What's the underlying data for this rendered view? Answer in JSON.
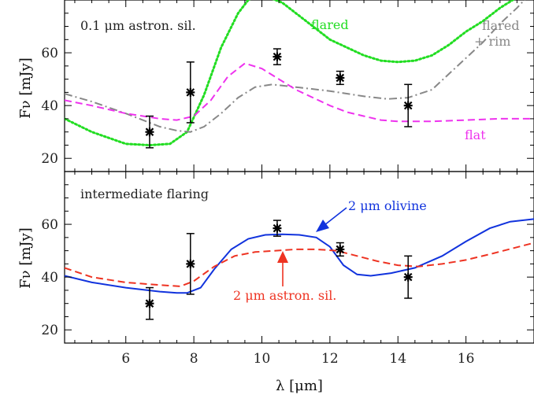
{
  "chart_data": [
    {
      "type": "line",
      "panel_label": "0.1 μm astron. sil.",
      "ylabel": "Fν [mJy]",
      "xlim": [
        4.2,
        18
      ],
      "ylim": [
        15,
        80
      ],
      "yticks": [
        20,
        40,
        60
      ],
      "grid": false,
      "series": [
        {
          "name": "flared",
          "color": "#22dd22",
          "style": "dotted",
          "x": [
            4.2,
            5,
            6,
            6.7,
            7.3,
            7.8,
            8.3,
            8.8,
            9.3,
            9.6,
            9.9,
            10.2,
            10.6,
            11,
            11.5,
            12,
            12.5,
            13,
            13.5,
            14,
            14.5,
            15,
            15.5,
            16,
            16.5,
            17,
            17.5,
            18
          ],
          "y": [
            35,
            30,
            25.5,
            25,
            25.5,
            30,
            44,
            62,
            75,
            80,
            82,
            81,
            79,
            75,
            70,
            65,
            62,
            59,
            57,
            56.5,
            57,
            59,
            63,
            68,
            72,
            77,
            81,
            85
          ]
        },
        {
          "name": "flared + rim",
          "color": "#888888",
          "style": "dashdot",
          "x": [
            4.2,
            5,
            6,
            7,
            7.5,
            7.9,
            8.3,
            8.8,
            9.3,
            9.8,
            10.3,
            11,
            12,
            13,
            13.7,
            14.3,
            15,
            15.5,
            16,
            16.5,
            17,
            17.5,
            18
          ],
          "y": [
            44.5,
            41.5,
            37,
            32,
            30.5,
            30,
            32,
            37,
            43,
            47,
            48,
            47,
            45.5,
            43.5,
            42.5,
            43,
            46,
            52,
            58,
            64,
            71,
            77,
            84
          ]
        },
        {
          "name": "flat",
          "color": "#ee33ee",
          "style": "dashed",
          "x": [
            4.2,
            5,
            6,
            7,
            7.5,
            8,
            8.5,
            9,
            9.5,
            10,
            10.5,
            11,
            11.5,
            12,
            12.5,
            13,
            13.5,
            14,
            15,
            16,
            17,
            18
          ],
          "y": [
            42,
            40,
            37,
            35,
            34.5,
            36,
            42,
            51,
            56,
            54,
            50,
            46,
            43,
            40,
            37.5,
            36,
            34.5,
            34,
            34,
            34.5,
            35,
            35
          ]
        }
      ],
      "data_points": [
        {
          "x": 6.7,
          "y": 30,
          "yerr": 6
        },
        {
          "x": 7.9,
          "y": 45,
          "yerr": 11.5
        },
        {
          "x": 10.45,
          "y": 58.5,
          "yerr": 3
        },
        {
          "x": 12.3,
          "y": 50.5,
          "yerr": 2.5
        },
        {
          "x": 14.3,
          "y": 40,
          "yerr": 8
        }
      ]
    },
    {
      "type": "line",
      "panel_label": "intermediate flaring",
      "ylabel": "Fν [mJy]",
      "xlabel": "λ [μm]",
      "xlim": [
        4.2,
        18
      ],
      "ylim": [
        15,
        80
      ],
      "yticks": [
        20,
        40,
        60
      ],
      "xticks": [
        6,
        8,
        10,
        12,
        14,
        16
      ],
      "grid": false,
      "series": [
        {
          "name": "2 μm olivine",
          "color": "#1133dd",
          "style": "solid",
          "x": [
            4.2,
            5,
            6,
            7,
            7.5,
            7.8,
            8.2,
            8.6,
            9.1,
            9.6,
            10.1,
            10.6,
            11.1,
            11.6,
            12.0,
            12.4,
            12.8,
            13.2,
            13.8,
            14.5,
            15.3,
            16,
            16.7,
            17.3,
            18
          ],
          "y": [
            40.5,
            38,
            36,
            34.5,
            34,
            34,
            36,
            43,
            50.5,
            54.5,
            56,
            56.2,
            56,
            55,
            51.5,
            44.5,
            41,
            40.5,
            41.5,
            43.5,
            48,
            53.5,
            58.5,
            61,
            62
          ]
        },
        {
          "name": "2 μm astron. sil.",
          "color": "#ee3322",
          "style": "dashed",
          "x": [
            4.2,
            5,
            6,
            7,
            7.6,
            8,
            8.6,
            9.2,
            9.8,
            10.4,
            11,
            11.6,
            12.2,
            12.8,
            13.4,
            14,
            14.6,
            15.3,
            16,
            16.8,
            17.4,
            18
          ],
          "y": [
            43.5,
            40,
            38,
            37,
            36.5,
            38.5,
            44,
            48,
            49.5,
            50,
            50.5,
            50.5,
            50,
            48,
            46,
            44.5,
            44,
            45,
            46.5,
            49,
            51,
            53
          ]
        }
      ],
      "data_points": [
        {
          "x": 6.7,
          "y": 30,
          "yerr": 6
        },
        {
          "x": 7.9,
          "y": 45,
          "yerr": 11.5
        },
        {
          "x": 10.45,
          "y": 58.5,
          "yerr": 3
        },
        {
          "x": 12.3,
          "y": 50.5,
          "yerr": 2.5
        },
        {
          "x": 14.3,
          "y": 40,
          "yerr": 8
        }
      ]
    }
  ]
}
